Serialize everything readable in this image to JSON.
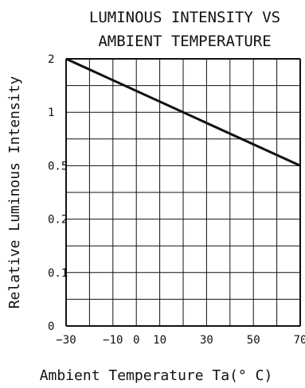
{
  "chart_data": {
    "type": "line",
    "title_lines": [
      "LUMINOUS INTENSITY VS",
      "AMBIENT TEMPERATURE"
    ],
    "xlabel": "Ambient   Temperature   Ta(° C)",
    "ylabel": "Relative Luminous Intensity",
    "x_ticks": [
      -30,
      -10,
      0,
      10,
      30,
      50,
      70
    ],
    "y_ticks": [
      "2",
      "1",
      "0.5",
      "0.2",
      "0.1",
      "0"
    ],
    "xlim": [
      -30,
      70
    ],
    "grid": true,
    "series": [
      {
        "x": [
          -30,
          70
        ],
        "y": [
          2.0,
          0.5
        ]
      }
    ]
  }
}
